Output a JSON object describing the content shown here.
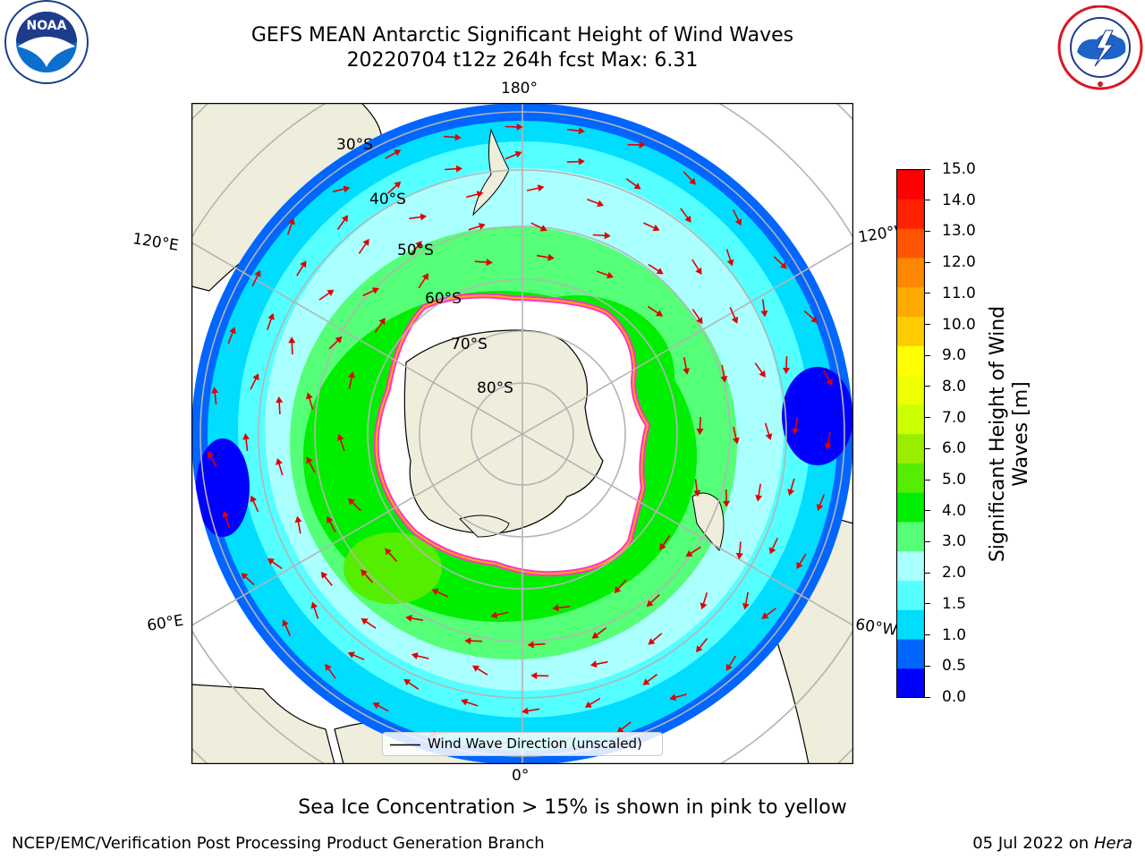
{
  "title": {
    "line1": "GEFS MEAN Antarctic Significant Height of Wind Waves",
    "line2": "20220704 t12z 264h fcst   Max: 6.31"
  },
  "logos": {
    "left": "NOAA",
    "left_ring": "NATIONAL OCEANIC AND ATMOSPHERIC ADMINISTRATION · U.S. DEPARTMENT OF COMMERCE",
    "right_ring": "NATIONAL WEATHER SERVICE"
  },
  "map": {
    "projection": "south-polar-stereographic",
    "longitude_labels": {
      "top": "180°",
      "bottom": "0°",
      "upper_left": "120°E",
      "upper_right": "120°W",
      "lower_left": "60°E",
      "lower_right": "60°W"
    },
    "latitude_labels": [
      "30°S",
      "40°S",
      "50°S",
      "60°S",
      "70°S",
      "80°S"
    ],
    "legend_label": "Wind Wave Direction (unscaled)"
  },
  "colorbar": {
    "label": "Significant Height of Wind Waves [m]",
    "label_line1": "Significant Height of Wind",
    "label_line2": "Waves [m]",
    "ticks": [
      "15.0",
      "14.0",
      "13.0",
      "12.0",
      "11.0",
      "10.0",
      "9.0",
      "8.0",
      "7.0",
      "6.0",
      "5.0",
      "4.0",
      "3.0",
      "2.0",
      "1.5",
      "1.0",
      "0.5",
      "0.0"
    ],
    "colors": [
      "#0000ff",
      "#0066ff",
      "#00ddff",
      "#55ffff",
      "#aaffff",
      "#55ff77",
      "#00ee00",
      "#55ee00",
      "#99ee00",
      "#ccff00",
      "#eeff00",
      "#ffff00",
      "#ffcc00",
      "#ffaa00",
      "#ff8800",
      "#ff5500",
      "#ff2200",
      "#ff0000"
    ],
    "ocean": "#00e5ff",
    "land": "#efeddc",
    "ice_edge": [
      "#ff33cc",
      "#ffaa00"
    ]
  },
  "annotation": "Sea Ice Concentration > 15% is shown in pink to yellow",
  "footer": {
    "left": "NCEP/EMC/Verification Post Processing Product Generation Branch",
    "right_date": "05 Jul 2022 on ",
    "right_host": "Hera"
  }
}
